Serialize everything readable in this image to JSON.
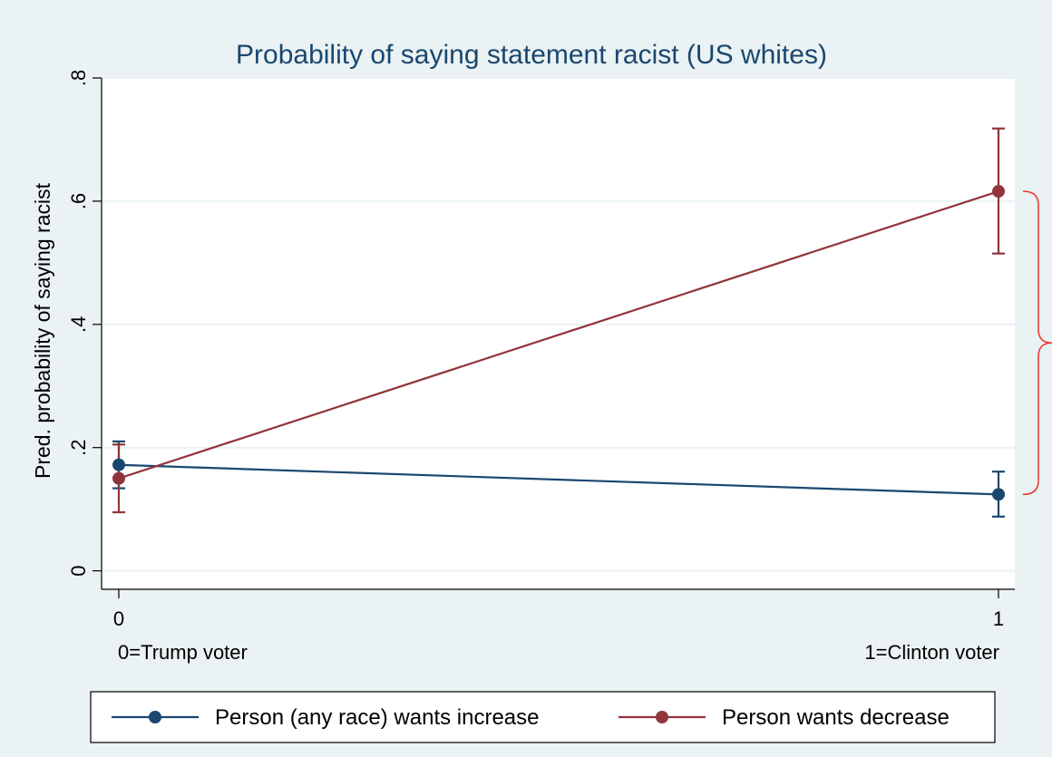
{
  "chart_data": {
    "type": "line",
    "title": "Probability of saying statement racist (US whites)",
    "ylabel": "Pred. probability of saying racist",
    "xlabel": "",
    "x": [
      0,
      1
    ],
    "x_tick_labels": [
      "0",
      "1"
    ],
    "x_category_labels": [
      "0=Trump voter",
      "1=Clinton voter"
    ],
    "y_ticks": [
      0,
      0.2,
      0.4,
      0.6,
      0.8
    ],
    "y_tick_labels": [
      "0",
      ".2",
      ".4",
      ".6",
      ".8"
    ],
    "ylim": [
      -0.03,
      0.8
    ],
    "grid": true,
    "legend_position": "bottom",
    "series": [
      {
        "name": "Person (any race) wants increase",
        "color": "#1a476f",
        "values": [
          0.172,
          0.124
        ],
        "ci_low": [
          0.134,
          0.088
        ],
        "ci_high": [
          0.21,
          0.161
        ]
      },
      {
        "name": "Person wants decrease",
        "color": "#90353b",
        "values": [
          0.15,
          0.616
        ],
        "ci_low": [
          0.095,
          0.515
        ],
        "ci_high": [
          0.205,
          0.718
        ]
      }
    ],
    "annotation": {
      "type": "brace",
      "color": "#e8352e",
      "spans": [
        0.124,
        0.616
      ]
    }
  }
}
